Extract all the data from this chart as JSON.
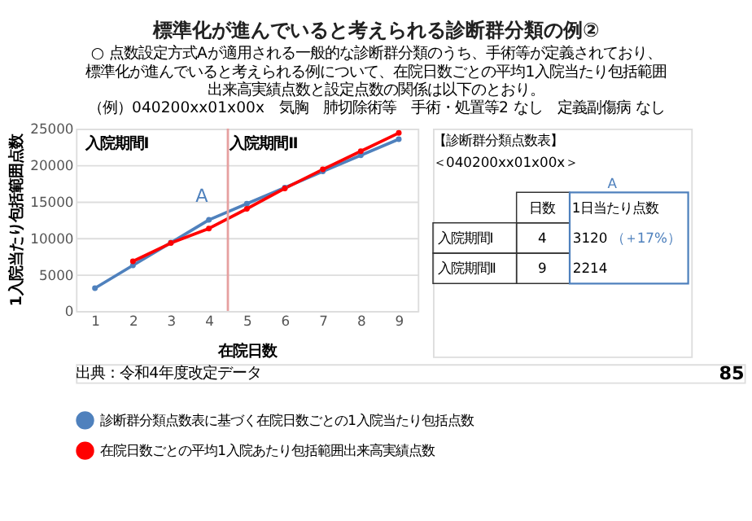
{
  "chart_data": {
    "type": "line",
    "title": "標準化が進んでいると考えられる診断群分類の例②",
    "subtitle": [
      "○ 点数設定方式Aが適用される一般的な診断群分類のうち、手術等が定義されており、",
      "標準化が進んでいると考えられる例について、在院日数ごとの平均1入院当たり包括範囲",
      "出来高実績点数と設定点数の関係は以下のとおり。",
      "（例）040200xx01x00x　気胸　肺切除術等　手術・処置等2 なし　定義副傷病 なし"
    ],
    "xlabel": "在院日数",
    "ylabel": "1入院当たり包括範囲点数",
    "x": [
      1,
      2,
      3,
      4,
      5,
      6,
      7,
      8,
      9
    ],
    "series": [
      {
        "name": "診断群分類点数表に基づく在院日数ごとの1入院当たり包括点数",
        "color": "#4f81bd",
        "values": [
          3120,
          6240,
          9360,
          12480,
          14694,
          16908,
          19122,
          21336,
          23550
        ]
      },
      {
        "name": "在院日数ごとの平均1入院あたり包括範囲出来高実績点数",
        "color": "#ff0000",
        "values": [
          null,
          6800,
          9300,
          11300,
          14000,
          16800,
          19400,
          21900,
          24400
        ]
      }
    ],
    "xlim": [
      0.5,
      9.5
    ],
    "xticks": [
      1,
      2,
      3,
      4,
      5,
      6,
      7,
      8,
      9
    ],
    "ylim": [
      0,
      25000
    ],
    "yticks": [
      0,
      5000,
      10000,
      15000,
      20000,
      25000
    ],
    "grid": "y",
    "legend": "bottom",
    "marker": "circle",
    "line_style": "solid",
    "ref_lines": [
      {
        "axis": "x",
        "value": 4.5,
        "label": null,
        "color": "#e6a0a0"
      }
    ],
    "annotations": [
      "入院期間Ⅰ",
      "入院期間Ⅱ",
      "A",
      "【診断群分類点数表】",
      "＜040200xx01x00x＞",
      "A",
      "日数",
      "1日当たり点数",
      "入院期間Ⅰ",
      "4",
      "3120",
      "（＋17%）",
      "入院期間Ⅱ",
      "9",
      "2214",
      "出典：令和4年度改定データ",
      "85"
    ]
  }
}
